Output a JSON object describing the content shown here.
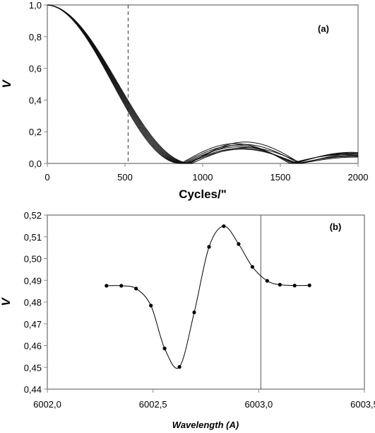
{
  "chart_data": [
    {
      "type": "line",
      "panel_label": "(a)",
      "xlabel": "Cycles/\"",
      "ylabel": "V",
      "xlim": [
        0,
        2000
      ],
      "ylim": [
        0,
        1.0
      ],
      "xticks": [
        "0",
        "500",
        "1000",
        "1500",
        "2000"
      ],
      "yticks": [
        "0,0",
        "0,2",
        "0,4",
        "0,6",
        "0,8",
        "1,0"
      ],
      "dashed_vertical_line_x": 520,
      "grid": false,
      "legend": "none",
      "series": [
        {
          "first_zero": 860,
          "second_zero": 1560,
          "lobe2_peak": 0.125,
          "lobe3_peak": 0.055
        },
        {
          "first_zero": 870,
          "second_zero": 1575,
          "lobe2_peak": 0.115,
          "lobe3_peak": 0.06
        },
        {
          "first_zero": 880,
          "second_zero": 1590,
          "lobe2_peak": 0.105,
          "lobe3_peak": 0.065
        },
        {
          "first_zero": 890,
          "second_zero": 1600,
          "lobe2_peak": 0.095,
          "lobe3_peak": 0.07
        },
        {
          "first_zero": 900,
          "second_zero": 1610,
          "lobe2_peak": 0.09,
          "lobe3_peak": 0.045
        },
        {
          "first_zero": 910,
          "second_zero": 1620,
          "lobe2_peak": 0.12,
          "lobe3_peak": 0.05
        },
        {
          "first_zero": 920,
          "second_zero": 1630,
          "lobe2_peak": 0.135,
          "lobe3_peak": 0.04
        },
        {
          "first_zero": 930,
          "second_zero": 1640,
          "lobe2_peak": 0.1,
          "lobe3_peak": 0.06
        }
      ]
    },
    {
      "type": "line",
      "panel_label": "(b)",
      "xlabel": "Wavelength (A)",
      "ylabel": "V",
      "xlim": [
        6002.0,
        6003.5
      ],
      "ylim": [
        0.44,
        0.52
      ],
      "xticks": [
        "6002,0",
        "6002,5",
        "6003,0",
        "6003,5"
      ],
      "yticks": [
        "0,44",
        "0,45",
        "0,46",
        "0,47",
        "0,48",
        "0,49",
        "0,50",
        "0,51",
        "0,52"
      ],
      "vertical_line_x": 6003.01,
      "grid": false,
      "legend": "none",
      "markers": true,
      "x": [
        6002.28,
        6002.35,
        6002.42,
        6002.49,
        6002.555,
        6002.625,
        6002.695,
        6002.765,
        6002.835,
        6002.905,
        6002.97,
        6003.04,
        6003.1,
        6003.17,
        6003.24
      ],
      "y": [
        0.4875,
        0.4875,
        0.4862,
        0.4784,
        0.4587,
        0.4502,
        0.4753,
        0.5054,
        0.5149,
        0.5067,
        0.4962,
        0.4898,
        0.488,
        0.4876,
        0.4877
      ]
    }
  ]
}
